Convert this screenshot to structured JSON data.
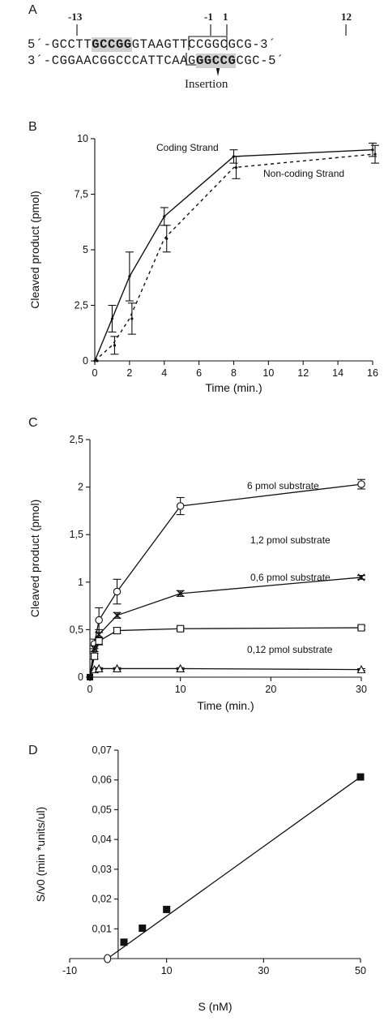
{
  "panel_a": {
    "letter": "A",
    "positions": {
      "p_13": "-13",
      "p_1m": "-1",
      "p1": "1",
      "p12": "12"
    },
    "top_strand": {
      "end5": "5´-",
      "s1": "GCCTT",
      "box1": "GCCGG",
      "s2": "GTAA",
      "s3": "GTTCCGGCGCG",
      "end3": "-3´"
    },
    "bottom_strand": {
      "end3": "3´-",
      "s1": "CGGAACGGCC",
      "s2": "CATT",
      "s3": "CAAG",
      "box2": "GGCCG",
      "s4": "CGC",
      "end5": "-5´"
    },
    "insertion_label": "Insertion"
  },
  "chart_data": [
    {
      "panel": "B",
      "type": "line",
      "xlabel": "Time (min.)",
      "ylabel": "Cleaved product (pmol)",
      "xlim": [
        0,
        16
      ],
      "ylim": [
        0,
        10
      ],
      "xticks": [
        "0",
        "2",
        "4",
        "6",
        "8",
        "10",
        "12",
        "14",
        "16"
      ],
      "yticks": [
        "0",
        "2,5",
        "5",
        "7,5",
        "10"
      ],
      "series": [
        {
          "name": "Coding Strand",
          "style": "solid",
          "x": [
            0,
            1,
            2,
            4,
            8,
            16
          ],
          "y": [
            0,
            1.9,
            3.8,
            6.5,
            9.2,
            9.5
          ],
          "err": [
            0,
            0.6,
            1.1,
            0.4,
            0.3,
            0.3
          ]
        },
        {
          "name": "Non-coding Strand",
          "style": "dashed",
          "x": [
            0,
            1,
            2,
            4,
            8,
            16
          ],
          "y": [
            0,
            0.7,
            1.9,
            5.5,
            8.7,
            9.3
          ],
          "err": [
            0,
            0.4,
            0.7,
            0.6,
            0.5,
            0.4
          ]
        }
      ]
    },
    {
      "panel": "C",
      "type": "line",
      "xlabel": "Time (min.)",
      "ylabel": "Cleaved product (pmol)",
      "xlim": [
        0,
        30
      ],
      "ylim": [
        0,
        2.5
      ],
      "xticks": [
        "0",
        "10",
        "20",
        "30"
      ],
      "yticks": [
        "0",
        "0,5",
        "1",
        "1,5",
        "2",
        "2,5"
      ],
      "series": [
        {
          "name": "6 pmol substrate",
          "marker": "circle",
          "x": [
            0,
            0.5,
            1,
            3,
            10,
            30
          ],
          "y": [
            0,
            0.35,
            0.6,
            0.9,
            1.8,
            2.03
          ],
          "err": [
            0,
            0.05,
            0.13,
            0.13,
            0.09,
            0.05
          ]
        },
        {
          "name": "1,2 pmol substrate",
          "marker": "x",
          "x": [
            0,
            0.5,
            1,
            3,
            10,
            30
          ],
          "y": [
            0,
            0.3,
            0.45,
            0.65,
            0.88,
            1.05
          ],
          "err": [
            0,
            0.03,
            0.05,
            0.03,
            0.03,
            0.02
          ]
        },
        {
          "name": "0,6 pmol substrate",
          "marker": "square",
          "x": [
            0,
            0.5,
            1,
            3,
            10,
            30
          ],
          "y": [
            0,
            0.22,
            0.38,
            0.49,
            0.51,
            0.52
          ],
          "err": [
            0,
            0.03,
            0.04,
            0.03,
            0.02,
            0.02
          ]
        },
        {
          "name": "0,12 pmol substrate",
          "marker": "triangle",
          "x": [
            0,
            0.5,
            1,
            3,
            10,
            30
          ],
          "y": [
            0,
            0.08,
            0.09,
            0.09,
            0.09,
            0.08
          ],
          "err": [
            0,
            0.01,
            0.01,
            0.01,
            0.01,
            0.01
          ]
        }
      ]
    },
    {
      "panel": "D",
      "type": "scatter",
      "xlabel": "S (nM)",
      "ylabel": "S/v0 (min *units/ul)",
      "xlim": [
        -10,
        50
      ],
      "ylim": [
        0,
        0.07
      ],
      "xticks": [
        "-10",
        "10",
        "30",
        "50"
      ],
      "yticks": [
        "0,01",
        "0,02",
        "0,03",
        "0,04",
        "0,05",
        "0,06",
        "0,07"
      ],
      "points": {
        "x": [
          1.2,
          5,
          10,
          50
        ],
        "y": [
          0.0055,
          0.0102,
          0.0165,
          0.061
        ]
      },
      "x_intercept": -2.2,
      "fit_line": {
        "x": [
          -2.2,
          50
        ],
        "y": [
          0,
          0.061
        ]
      }
    }
  ]
}
